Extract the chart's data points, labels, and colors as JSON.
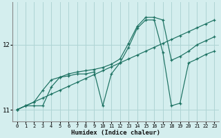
{
  "xlabel": "Humidex (Indice chaleur)",
  "bg_color": "#d4eeee",
  "grid_color": "#aed4d4",
  "line_color": "#1a7060",
  "xlim": [
    -0.5,
    23.5
  ],
  "ylim": [
    10.82,
    12.65
  ],
  "yticks": [
    11,
    12
  ],
  "xticks": [
    0,
    1,
    2,
    3,
    4,
    5,
    6,
    7,
    8,
    9,
    10,
    11,
    12,
    13,
    14,
    15,
    16,
    17,
    18,
    19,
    20,
    21,
    22,
    23
  ],
  "diag_x": [
    0,
    1,
    2,
    3,
    4,
    5,
    6,
    7,
    8,
    9,
    10,
    11,
    12,
    13,
    14,
    15,
    16,
    17,
    18,
    19,
    20,
    21,
    22,
    23
  ],
  "diag_y": [
    11.0,
    11.06,
    11.12,
    11.18,
    11.24,
    11.3,
    11.36,
    11.42,
    11.48,
    11.54,
    11.6,
    11.66,
    11.72,
    11.78,
    11.84,
    11.9,
    11.96,
    12.02,
    12.08,
    12.14,
    12.2,
    12.26,
    12.32,
    12.38
  ],
  "upper_x": [
    0,
    1,
    2,
    3,
    4,
    5,
    6,
    7,
    8,
    9,
    10,
    11,
    12,
    13,
    14,
    15,
    16,
    17,
    18,
    19,
    20,
    21,
    22,
    23
  ],
  "upper_y": [
    11.0,
    11.06,
    11.12,
    11.3,
    11.46,
    11.5,
    11.55,
    11.58,
    11.6,
    11.62,
    11.65,
    11.7,
    11.78,
    12.02,
    12.28,
    12.42,
    12.42,
    12.38,
    11.76,
    11.82,
    11.9,
    12.0,
    12.06,
    12.12
  ],
  "lower_x": [
    0,
    1,
    2,
    3,
    4,
    5,
    6,
    7,
    8,
    9,
    10,
    11,
    12,
    13,
    14,
    15,
    16,
    17,
    18,
    19,
    20,
    21,
    22,
    23
  ],
  "lower_y": [
    11.0,
    11.06,
    11.06,
    11.06,
    11.35,
    11.5,
    11.52,
    11.55,
    11.55,
    11.58,
    11.06,
    11.55,
    11.72,
    11.96,
    12.25,
    12.38,
    12.38,
    11.88,
    11.06,
    11.1,
    11.72,
    11.78,
    11.85,
    11.9
  ]
}
